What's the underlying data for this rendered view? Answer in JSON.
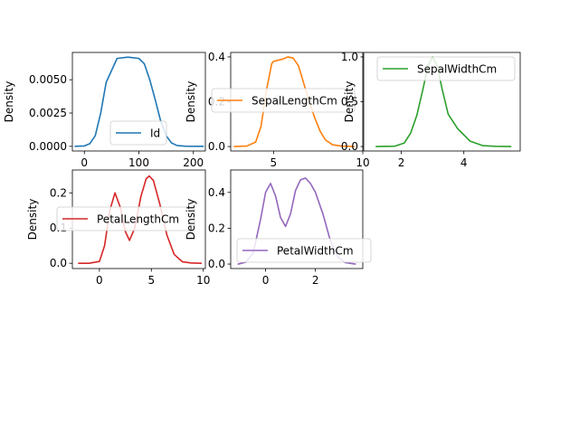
{
  "chart_data": [
    {
      "type": "line",
      "ylabel": "Density",
      "xlim": [
        -22,
        222
      ],
      "ylim": [
        -0.00035,
        0.00705
      ],
      "xticks": [
        0,
        100,
        200
      ],
      "xtick_labels": [
        "0",
        "100",
        "200"
      ],
      "yticks": [
        0,
        0.0025,
        0.005
      ],
      "ytick_labels": [
        "0.0000",
        "0.0025",
        "0.0050"
      ],
      "legend_loc": "lower-center",
      "series": [
        {
          "name": "Id",
          "color": "#1f77b4",
          "x": [
            -17,
            0,
            10,
            20,
            30,
            40,
            60,
            80,
            100,
            110,
            120,
            130,
            140,
            150,
            160,
            170,
            185,
            205,
            218
          ],
          "y": [
            0,
            3e-05,
            0.0002,
            0.0008,
            0.0025,
            0.0048,
            0.0066,
            0.0067,
            0.0066,
            0.0062,
            0.005,
            0.0035,
            0.0019,
            0.0008,
            0.00025,
            6e-05,
            1e-05,
            0,
            0
          ]
        }
      ]
    },
    {
      "type": "line",
      "ylabel": "Density",
      "xlim": [
        2.6,
        10.0
      ],
      "ylim": [
        -0.02,
        0.42
      ],
      "xticks": [
        5,
        10
      ],
      "xtick_labels": [
        "5",
        "10"
      ],
      "yticks": [
        0,
        0.4
      ],
      "ytick_labels": [
        "0.0",
        "0.4"
      ],
      "ylabel_partial": "0.2",
      "legend_loc": "center-left",
      "series": [
        {
          "name": "SepalLengthCm",
          "color": "#ff7f0e",
          "x": [
            2.8,
            3.5,
            4.0,
            4.3,
            4.6,
            4.9,
            5.0,
            5.5,
            5.8,
            6.1,
            6.4,
            6.7,
            7.0,
            7.3,
            7.6,
            7.9,
            8.3,
            8.8,
            9.5
          ],
          "y": [
            0,
            0.002,
            0.02,
            0.09,
            0.25,
            0.37,
            0.38,
            0.39,
            0.4,
            0.395,
            0.36,
            0.28,
            0.2,
            0.13,
            0.07,
            0.03,
            0.008,
            0.002,
            0
          ]
        }
      ]
    },
    {
      "type": "line",
      "ylabel": "Density",
      "xlim": [
        0.8,
        5.8
      ],
      "ylim": [
        -0.05,
        1.05
      ],
      "xticks": [
        2,
        4
      ],
      "xtick_labels": [
        "2",
        "4"
      ],
      "yticks": [
        0,
        0.5,
        1.0
      ],
      "ytick_labels": [
        "0.0",
        "0.5",
        "1.0"
      ],
      "legend_loc": "upper-left",
      "series": [
        {
          "name": "SepalWidthCm",
          "color": "#2ca02c",
          "x": [
            1.2,
            1.8,
            2.1,
            2.3,
            2.5,
            2.7,
            2.85,
            3.0,
            3.15,
            3.3,
            3.5,
            3.8,
            4.2,
            4.6,
            5.0,
            5.5
          ],
          "y": [
            0,
            0.004,
            0.04,
            0.15,
            0.35,
            0.65,
            0.9,
            1.0,
            0.9,
            0.65,
            0.36,
            0.2,
            0.06,
            0.01,
            0.002,
            0
          ]
        }
      ]
    },
    {
      "type": "line",
      "ylabel": "Density",
      "xlim": [
        -2.6,
        10.2
      ],
      "ylim": [
        -0.015,
        0.265
      ],
      "xticks": [
        0,
        5,
        10
      ],
      "xtick_labels": [
        "0",
        "5",
        "10"
      ],
      "yticks": [
        0,
        0.2
      ],
      "ytick_labels": [
        "0.0",
        "0.2"
      ],
      "ylabel_partial": "0.1",
      "legend_loc": "center-left",
      "series": [
        {
          "name": "PetalLengthCm",
          "color": "#d62728",
          "x": [
            -2.0,
            -1.0,
            0.0,
            0.5,
            1.0,
            1.5,
            2.0,
            2.5,
            2.9,
            3.4,
            4.0,
            4.5,
            4.8,
            5.2,
            5.8,
            6.5,
            7.2,
            8.0,
            8.8,
            9.8
          ],
          "y": [
            0,
            0,
            0.005,
            0.05,
            0.15,
            0.2,
            0.16,
            0.09,
            0.065,
            0.1,
            0.19,
            0.24,
            0.248,
            0.235,
            0.17,
            0.08,
            0.025,
            0.004,
            0.001,
            0
          ]
        }
      ]
    },
    {
      "type": "line",
      "ylabel": "Density",
      "xlim": [
        -1.4,
        3.9
      ],
      "ylim": [
        -0.025,
        0.525
      ],
      "xticks": [
        0,
        2
      ],
      "xtick_labels": [
        "0",
        "2"
      ],
      "yticks": [
        0,
        0.2,
        0.4
      ],
      "ytick_labels": [
        "0.0",
        "0.2",
        "0.4"
      ],
      "legend_loc": "lower-center",
      "series": [
        {
          "name": "PetalWidthCm",
          "color": "#9467bd",
          "x": [
            -1.1,
            -0.8,
            -0.5,
            -0.2,
            0.0,
            0.2,
            0.4,
            0.6,
            0.8,
            1.0,
            1.2,
            1.4,
            1.6,
            1.8,
            2.0,
            2.3,
            2.6,
            2.9,
            3.2,
            3.6
          ],
          "y": [
            0,
            0.01,
            0.06,
            0.25,
            0.4,
            0.45,
            0.38,
            0.26,
            0.21,
            0.28,
            0.41,
            0.47,
            0.48,
            0.45,
            0.4,
            0.28,
            0.13,
            0.04,
            0.008,
            0
          ]
        }
      ]
    }
  ]
}
